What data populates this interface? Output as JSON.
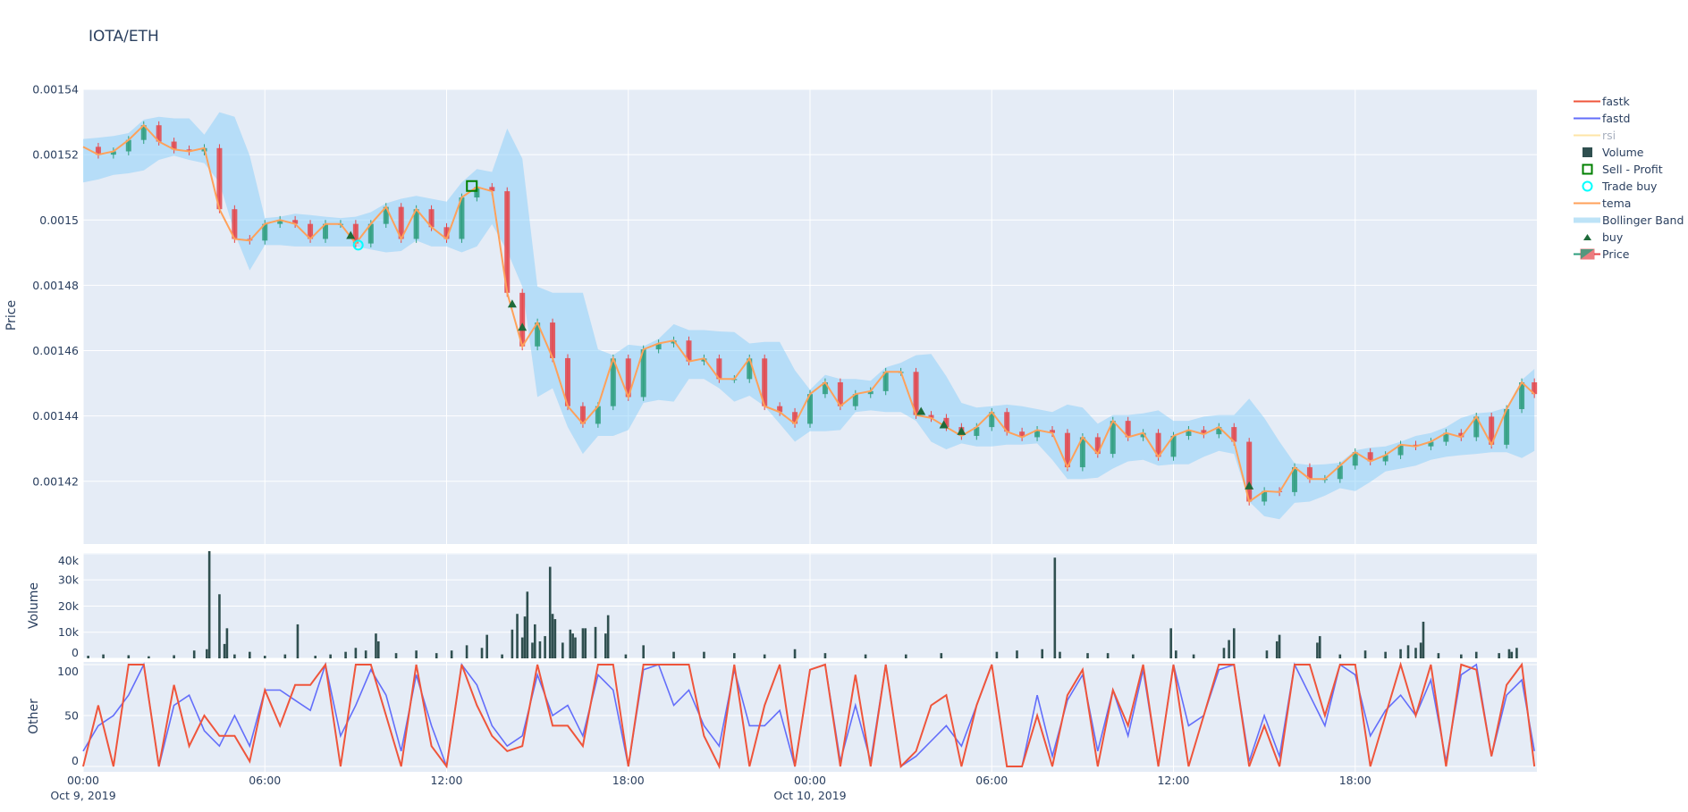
{
  "title": "IOTA/ETH",
  "legend": [
    {
      "label": "fastk",
      "icon": "line-icon",
      "color": "#EF553B"
    },
    {
      "label": "fastd",
      "icon": "line-icon",
      "color": "#636EFA"
    },
    {
      "label": "rsi",
      "icon": "line-icon",
      "color": "#FECB52",
      "hidden": true
    },
    {
      "label": "Volume",
      "icon": "square-icon",
      "color": "#2F4F4F"
    },
    {
      "label": "Sell - Profit",
      "icon": "square-open-icon",
      "color": "#008000"
    },
    {
      "label": "Trade buy",
      "icon": "circle-open-icon",
      "color": "#00FFFF"
    },
    {
      "label": "tema",
      "icon": "line-icon",
      "color": "#FFA15A"
    },
    {
      "label": "Bollinger Band",
      "icon": "band-icon",
      "color": "#BDE3F7"
    },
    {
      "label": "buy",
      "icon": "triangle-up-icon",
      "color": "#1E6B3A"
    },
    {
      "label": "Price",
      "icon": "candlestick-icon",
      "color": "#E74C3C"
    }
  ],
  "chart_data": {
    "type": "candlestick",
    "title": "IOTA/ETH",
    "colors": {
      "increasing": "#2E9E7E",
      "decreasing": "#E5454A",
      "tema": "#FFA15A",
      "band": "rgba(135,206,250,0.5)",
      "volume": "#2F4F4F",
      "fastk": "#EF553B",
      "fastd": "#636EFA",
      "buy": "#1E6B3A",
      "trade_buy": "#00FFFF",
      "sell_profit": "#008000",
      "plot_bg": "#E5ECF6"
    },
    "grid": true,
    "legend_position": "right",
    "x_ticks": [
      {
        "t": "2019-10-09 00:00",
        "label": "00:00",
        "sub": "Oct 9, 2019"
      },
      {
        "t": "2019-10-09 06:00",
        "label": "06:00",
        "sub": ""
      },
      {
        "t": "2019-10-09 12:00",
        "label": "12:00",
        "sub": ""
      },
      {
        "t": "2019-10-09 18:00",
        "label": "18:00",
        "sub": ""
      },
      {
        "t": "2019-10-10 00:00",
        "label": "00:00",
        "sub": "Oct 10, 2019"
      },
      {
        "t": "2019-10-10 06:00",
        "label": "06:00",
        "sub": ""
      },
      {
        "t": "2019-10-10 12:00",
        "label": "12:00",
        "sub": ""
      },
      {
        "t": "2019-10-10 18:00",
        "label": "18:00",
        "sub": ""
      }
    ],
    "panes": {
      "price": {
        "ylabel": "Price",
        "ylim": [
          0.0014008,
          0.00154
        ],
        "ticks": [
          {
            "v": 0.00142,
            "label": "0.00142"
          },
          {
            "v": 0.00144,
            "label": "0.00144"
          },
          {
            "v": 0.00146,
            "label": "0.00146"
          },
          {
            "v": 0.00148,
            "label": "0.00148"
          },
          {
            "v": 0.0015,
            "label": "0.0015"
          },
          {
            "v": 0.00152,
            "label": "0.00152"
          },
          {
            "v": 0.00154,
            "label": "0.00154"
          }
        ]
      },
      "volume": {
        "ylabel": "Volume",
        "ylim": [
          0,
          40300
        ],
        "ticks": [
          {
            "v": 0,
            "label": "0"
          },
          {
            "v": 10000,
            "label": "10k"
          },
          {
            "v": 20000,
            "label": "20k"
          },
          {
            "v": 30000,
            "label": "30k"
          },
          {
            "v": 40000,
            "label": "40k"
          }
        ]
      },
      "other": {
        "ylabel": "Other",
        "ylim": [
          -5.3,
          102.6
        ],
        "ticks": [
          {
            "v": 0,
            "label": "0"
          },
          {
            "v": 50,
            "label": "50"
          },
          {
            "v": 100,
            "label": "100"
          }
        ]
      }
    },
    "x": [
      "2019-10-09 00:00",
      "2019-10-09 00:30",
      "2019-10-09 01:00",
      "2019-10-09 01:30",
      "2019-10-09 02:00",
      "2019-10-09 02:30",
      "2019-10-09 03:00",
      "2019-10-09 03:30",
      "2019-10-09 04:00",
      "2019-10-09 04:30",
      "2019-10-09 05:00",
      "2019-10-09 05:30",
      "2019-10-09 06:00",
      "2019-10-09 06:30",
      "2019-10-09 07:00",
      "2019-10-09 07:30",
      "2019-10-09 08:00",
      "2019-10-09 08:30",
      "2019-10-09 09:00",
      "2019-10-09 09:30",
      "2019-10-09 10:00",
      "2019-10-09 10:30",
      "2019-10-09 11:00",
      "2019-10-09 11:30",
      "2019-10-09 12:00",
      "2019-10-09 12:30",
      "2019-10-09 13:00",
      "2019-10-09 13:30",
      "2019-10-09 14:00",
      "2019-10-09 14:30",
      "2019-10-09 15:00",
      "2019-10-09 15:30",
      "2019-10-09 16:00",
      "2019-10-09 16:30",
      "2019-10-09 17:00",
      "2019-10-09 17:30",
      "2019-10-09 18:00",
      "2019-10-09 18:30",
      "2019-10-09 19:00",
      "2019-10-09 19:30",
      "2019-10-09 20:00",
      "2019-10-09 20:30",
      "2019-10-09 21:00",
      "2019-10-09 21:30",
      "2019-10-09 22:00",
      "2019-10-09 22:30",
      "2019-10-09 23:00",
      "2019-10-09 23:30",
      "2019-10-10 00:00",
      "2019-10-10 00:30",
      "2019-10-10 01:00",
      "2019-10-10 01:30",
      "2019-10-10 02:00",
      "2019-10-10 02:30",
      "2019-10-10 03:00",
      "2019-10-10 03:30",
      "2019-10-10 04:00",
      "2019-10-10 04:30",
      "2019-10-10 05:00",
      "2019-10-10 05:30",
      "2019-10-10 06:00",
      "2019-10-10 06:30",
      "2019-10-10 07:00",
      "2019-10-10 07:30",
      "2019-10-10 08:00",
      "2019-10-10 08:30",
      "2019-10-10 09:00",
      "2019-10-10 09:30",
      "2019-10-10 10:00",
      "2019-10-10 10:30",
      "2019-10-10 11:00",
      "2019-10-10 11:30",
      "2019-10-10 12:00",
      "2019-10-10 12:30",
      "2019-10-10 13:00",
      "2019-10-10 13:30",
      "2019-10-10 14:00",
      "2019-10-10 14:30",
      "2019-10-10 15:00",
      "2019-10-10 15:30",
      "2019-10-10 16:00",
      "2019-10-10 16:30",
      "2019-10-10 17:00",
      "2019-10-10 17:30",
      "2019-10-10 18:00",
      "2019-10-10 18:30",
      "2019-10-10 19:00",
      "2019-10-10 19:30",
      "2019-10-10 20:00",
      "2019-10-10 20:30",
      "2019-10-10 21:00",
      "2019-10-10 21:30",
      "2019-10-10 22:00",
      "2019-10-10 22:30",
      "2019-10-10 23:00",
      "2019-10-10 23:30",
      "2019-10-10 23:55"
    ],
    "close": [
      0.0015224,
      0.00152,
      0.001521,
      0.0015245,
      0.001529,
      0.001524,
      0.0015216,
      0.001521,
      0.001522,
      0.0015033,
      0.0014942,
      0.0014937,
      0.0014988,
      0.0015,
      0.0014988,
      0.0014942,
      0.0014988,
      0.0014988,
      0.0014928,
      0.0014988,
      0.001504,
      0.0014942,
      0.0015033,
      0.0014978,
      0.0014942,
      0.0015069,
      0.0015101,
      0.0015088,
      0.0014777,
      0.0014613,
      0.0014686,
      0.0014577,
      0.001443,
      0.0014376,
      0.001443,
      0.0014576,
      0.0014458,
      0.0014604,
      0.0014622,
      0.0014631,
      0.0014567,
      0.0014576,
      0.0014513,
      0.0014513,
      0.0014576,
      0.001443,
      0.0014412,
      0.0014376,
      0.0014467,
      0.0014503,
      0.001443,
      0.0014467,
      0.0014476,
      0.0014535,
      0.0014535,
      0.0014403,
      0.0014394,
      0.0014366,
      0.0014339,
      0.0014366,
      0.0014412,
      0.0014352,
      0.0014335,
      0.0014357,
      0.0014348,
      0.0014243,
      0.0014335,
      0.0014284,
      0.0014385,
      0.0014335,
      0.0014348,
      0.0014275,
      0.0014339,
      0.0014357,
      0.0014344,
      0.0014366,
      0.0014321,
      0.0014138,
      0.001417,
      0.0014167,
      0.0014243,
      0.0014207,
      0.0014207,
      0.0014248,
      0.0014289,
      0.0014261,
      0.001428,
      0.0014312,
      0.0014307,
      0.0014321,
      0.0014348,
      0.0014335,
      0.0014398,
      0.0014312,
      0.0014421,
      0.0014503,
      0.0014467
    ],
    "bb_upper": [
      0.0015248,
      0.0015252,
      0.0015257,
      0.0015266,
      0.0015307,
      0.0015316,
      0.0015311,
      0.0015311,
      0.0015261,
      0.001533,
      0.0015316,
      0.0015197,
      0.0015006,
      0.001501,
      0.0015019,
      0.0015015,
      0.001501,
      0.0015006,
      0.001501,
      0.0015024,
      0.0015051,
      0.0015065,
      0.0015074,
      0.0015065,
      0.0015056,
      0.0015115,
      0.0015156,
      0.0015147,
      0.001528,
      0.0015188,
      0.0014796,
      0.0014777,
      0.0014777,
      0.0014777,
      0.0014604,
      0.0014586,
      0.0014618,
      0.0014613,
      0.0014636,
      0.0014681,
      0.0014663,
      0.0014663,
      0.0014659,
      0.0014657,
      0.0014622,
      0.0014627,
      0.0014627,
      0.001454,
      0.001448,
      0.0014526,
      0.0014513,
      0.0014513,
      0.0014508,
      0.0014549,
      0.0014563,
      0.0014586,
      0.001459,
      0.0014522,
      0.001444,
      0.0014426,
      0.001443,
      0.0014435,
      0.001443,
      0.0014421,
      0.0014412,
      0.0014435,
      0.0014426,
      0.0014376,
      0.0014403,
      0.0014403,
      0.0014408,
      0.0014417,
      0.0014385,
      0.0014385,
      0.0014398,
      0.0014403,
      0.0014403,
      0.0014453,
      0.0014394,
      0.0014321,
      0.0014255,
      0.001425,
      0.0014252,
      0.0014257,
      0.0014295,
      0.0014303,
      0.0014307,
      0.0014321,
      0.0014339,
      0.0014348,
      0.0014366,
      0.0014394,
      0.0014408,
      0.0014412,
      0.0014426,
      0.001451,
      0.0014544
    ],
    "bb_lower": [
      0.0015115,
      0.0015124,
      0.0015138,
      0.0015143,
      0.0015152,
      0.0015184,
      0.0015197,
      0.0015184,
      0.0015174,
      0.0015115,
      0.001496,
      0.0014846,
      0.0014923,
      0.0014923,
      0.0014919,
      0.0014919,
      0.0014919,
      0.0014919,
      0.0014919,
      0.001491,
      0.0014901,
      0.0014905,
      0.0014937,
      0.0014919,
      0.0014919,
      0.0014901,
      0.0014919,
      0.0014987,
      0.0014905,
      0.0014796,
      0.0014458,
      0.0014485,
      0.0014366,
      0.0014284,
      0.0014339,
      0.0014339,
      0.0014357,
      0.001444,
      0.0014449,
      0.0014444,
      0.0014513,
      0.0014513,
      0.0014485,
      0.0014444,
      0.0014462,
      0.001443,
      0.0014376,
      0.0014321,
      0.0014353,
      0.0014353,
      0.0014357,
      0.0014412,
      0.0014417,
      0.0014412,
      0.0014412,
      0.0014385,
      0.0014321,
      0.0014298,
      0.0014316,
      0.0014307,
      0.0014307,
      0.0014312,
      0.0014312,
      0.0014316,
      0.0014266,
      0.0014207,
      0.0014207,
      0.0014211,
      0.0014239,
      0.0014261,
      0.0014266,
      0.0014248,
      0.0014252,
      0.0014252,
      0.0014275,
      0.0014293,
      0.0014284,
      0.0014138,
      0.0014093,
      0.0014084,
      0.0014134,
      0.0014138,
      0.0014156,
      0.0014179,
      0.001417,
      0.0014198,
      0.001423,
      0.0014239,
      0.0014248,
      0.0014266,
      0.0014275,
      0.001428,
      0.0014284,
      0.0014289,
      0.0014289,
      0.0014271,
      0.0014293
    ],
    "fastk": [
      0,
      60,
      0,
      100,
      100,
      0,
      80,
      20,
      50,
      30,
      30,
      5,
      75,
      40,
      80,
      80,
      100,
      0,
      100,
      100,
      50,
      0,
      100,
      20,
      0,
      100,
      60,
      30,
      15,
      20,
      100,
      40,
      40,
      20,
      100,
      100,
      0,
      100,
      100,
      100,
      100,
      30,
      0,
      100,
      0,
      60,
      100,
      0,
      95,
      100,
      0,
      90,
      0,
      100,
      0,
      15,
      60,
      70,
      0,
      60,
      100,
      0,
      0,
      50,
      0,
      70,
      95,
      0,
      75,
      40,
      100,
      0,
      100,
      0,
      50,
      100,
      100,
      0,
      40,
      0,
      100,
      100,
      50,
      100,
      100,
      0,
      50,
      100,
      50,
      100,
      0,
      100,
      95,
      10,
      80,
      100,
      0
    ],
    "fastd": [
      15,
      40,
      50,
      70,
      100,
      0,
      60,
      70,
      35,
      20,
      50,
      20,
      75,
      75,
      65,
      55,
      100,
      30,
      60,
      95,
      70,
      15,
      90,
      40,
      0,
      100,
      80,
      40,
      20,
      30,
      90,
      50,
      60,
      30,
      90,
      75,
      0,
      95,
      100,
      60,
      75,
      40,
      20,
      95,
      40,
      40,
      55,
      0,
      95,
      100,
      5,
      60,
      5,
      100,
      0,
      10,
      25,
      40,
      20,
      60,
      100,
      0,
      0,
      70,
      10,
      65,
      90,
      15,
      75,
      30,
      95,
      0,
      100,
      40,
      50,
      95,
      100,
      5,
      50,
      10,
      100,
      70,
      40,
      100,
      90,
      30,
      55,
      70,
      50,
      85,
      5,
      90,
      100,
      10,
      70,
      85,
      15
    ],
    "volume": [
      [
        "2019-10-09 00:10",
        1000
      ],
      [
        "2019-10-09 00:40",
        1500
      ],
      [
        "2019-10-09 01:30",
        1200
      ],
      [
        "2019-10-09 02:10",
        800
      ],
      [
        "2019-10-09 03:00",
        1200
      ],
      [
        "2019-10-09 03:40",
        3000
      ],
      [
        "2019-10-09 04:05",
        3500
      ],
      [
        "2019-10-09 04:10",
        41000
      ],
      [
        "2019-10-09 04:30",
        24500
      ],
      [
        "2019-10-09 04:40",
        5500
      ],
      [
        "2019-10-09 04:45",
        11500
      ],
      [
        "2019-10-09 05:00",
        1500
      ],
      [
        "2019-10-09 05:30",
        2500
      ],
      [
        "2019-10-09 06:00",
        1000
      ],
      [
        "2019-10-09 06:40",
        1500
      ],
      [
        "2019-10-09 07:05",
        13000
      ],
      [
        "2019-10-09 07:40",
        1000
      ],
      [
        "2019-10-09 08:10",
        1500
      ],
      [
        "2019-10-09 08:40",
        2500
      ],
      [
        "2019-10-09 09:00",
        4000
      ],
      [
        "2019-10-09 09:20",
        3000
      ],
      [
        "2019-10-09 09:40",
        9500
      ],
      [
        "2019-10-09 09:45",
        6500
      ],
      [
        "2019-10-09 10:20",
        2000
      ],
      [
        "2019-10-09 11:00",
        3000
      ],
      [
        "2019-10-09 11:40",
        2000
      ],
      [
        "2019-10-09 12:10",
        3000
      ],
      [
        "2019-10-09 12:40",
        5000
      ],
      [
        "2019-10-09 13:10",
        4000
      ],
      [
        "2019-10-09 13:20",
        9000
      ],
      [
        "2019-10-09 13:50",
        1500
      ],
      [
        "2019-10-09 14:10",
        11000
      ],
      [
        "2019-10-09 14:20",
        17000
      ],
      [
        "2019-10-09 14:30",
        8000
      ],
      [
        "2019-10-09 14:35",
        16000
      ],
      [
        "2019-10-09 14:40",
        25500
      ],
      [
        "2019-10-09 14:50",
        6000
      ],
      [
        "2019-10-09 14:55",
        13000
      ],
      [
        "2019-10-09 15:05",
        6500
      ],
      [
        "2019-10-09 15:15",
        8500
      ],
      [
        "2019-10-09 15:25",
        35000
      ],
      [
        "2019-10-09 15:30",
        17000
      ],
      [
        "2019-10-09 15:35",
        15000
      ],
      [
        "2019-10-09 15:50",
        6000
      ],
      [
        "2019-10-09 16:05",
        11000
      ],
      [
        "2019-10-09 16:10",
        9500
      ],
      [
        "2019-10-09 16:15",
        8000
      ],
      [
        "2019-10-09 16:30",
        11500
      ],
      [
        "2019-10-09 16:35",
        11500
      ],
      [
        "2019-10-09 16:55",
        12000
      ],
      [
        "2019-10-09 17:15",
        9500
      ],
      [
        "2019-10-09 17:20",
        16500
      ],
      [
        "2019-10-09 17:55",
        1500
      ],
      [
        "2019-10-09 18:30",
        5000
      ],
      [
        "2019-10-09 19:30",
        2500
      ],
      [
        "2019-10-09 20:30",
        2500
      ],
      [
        "2019-10-09 21:30",
        2000
      ],
      [
        "2019-10-09 22:30",
        1500
      ],
      [
        "2019-10-09 23:30",
        3500
      ],
      [
        "2019-10-10 00:30",
        2000
      ],
      [
        "2019-10-10 01:50",
        1500
      ],
      [
        "2019-10-10 03:10",
        1500
      ],
      [
        "2019-10-10 04:20",
        2000
      ],
      [
        "2019-10-10 06:10",
        2500
      ],
      [
        "2019-10-10 06:50",
        3000
      ],
      [
        "2019-10-10 07:40",
        3500
      ],
      [
        "2019-10-10 08:05",
        38500
      ],
      [
        "2019-10-10 08:15",
        2500
      ],
      [
        "2019-10-10 09:10",
        2000
      ],
      [
        "2019-10-10 09:50",
        2000
      ],
      [
        "2019-10-10 10:40",
        1500
      ],
      [
        "2019-10-10 11:55",
        11500
      ],
      [
        "2019-10-10 12:05",
        3000
      ],
      [
        "2019-10-10 12:40",
        1500
      ],
      [
        "2019-10-10 13:40",
        4000
      ],
      [
        "2019-10-10 13:50",
        7000
      ],
      [
        "2019-10-10 14:00",
        11500
      ],
      [
        "2019-10-10 15:05",
        3000
      ],
      [
        "2019-10-10 15:25",
        6500
      ],
      [
        "2019-10-10 15:30",
        9000
      ],
      [
        "2019-10-10 16:45",
        6000
      ],
      [
        "2019-10-10 16:50",
        8500
      ],
      [
        "2019-10-10 17:30",
        1500
      ],
      [
        "2019-10-10 18:20",
        3000
      ],
      [
        "2019-10-10 19:00",
        2500
      ],
      [
        "2019-10-10 19:30",
        3500
      ],
      [
        "2019-10-10 19:45",
        5000
      ],
      [
        "2019-10-10 20:00",
        4000
      ],
      [
        "2019-10-10 20:10",
        6000
      ],
      [
        "2019-10-10 20:15",
        14000
      ],
      [
        "2019-10-10 20:45",
        2000
      ],
      [
        "2019-10-10 21:30",
        1500
      ],
      [
        "2019-10-10 22:00",
        2500
      ],
      [
        "2019-10-10 22:45",
        2000
      ],
      [
        "2019-10-10 23:05",
        3500
      ],
      [
        "2019-10-10 23:10",
        2500
      ],
      [
        "2019-10-10 23:20",
        4000
      ]
    ],
    "buy": [
      [
        "2019-10-09 08:50",
        0.0014953
      ],
      [
        "2019-10-09 14:10",
        0.0014743
      ],
      [
        "2019-10-09 14:30",
        0.0014672
      ],
      [
        "2019-10-10 03:40",
        0.0014414
      ],
      [
        "2019-10-10 04:25",
        0.0014373
      ],
      [
        "2019-10-10 05:00",
        0.0014353
      ],
      [
        "2019-10-10 14:30",
        0.0014186
      ]
    ],
    "trade_buy": [
      [
        "2019-10-09 09:05",
        0.0014923
      ]
    ],
    "sell_profit": [
      [
        "2019-10-09 12:50",
        0.0015104
      ]
    ]
  }
}
